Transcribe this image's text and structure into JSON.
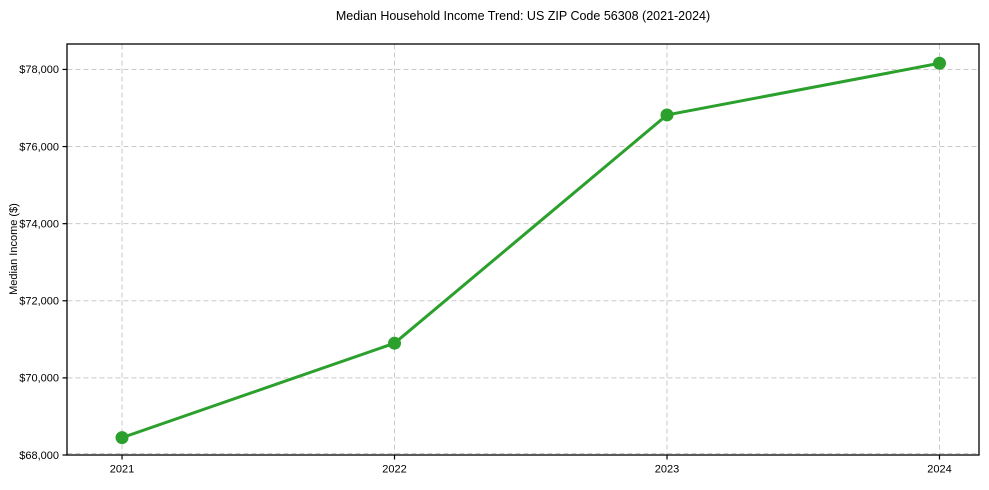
{
  "chart_data": {
    "type": "line",
    "title": "Median Household Income Trend: US ZIP Code 56308 (2021-2024)",
    "xlabel": "",
    "ylabel": "Median Income ($)",
    "x": [
      2021,
      2022,
      2023,
      2024
    ],
    "series": [
      {
        "name": "Median Household Income",
        "values": [
          68450,
          70900,
          76820,
          78160
        ]
      }
    ],
    "xticks": [
      {
        "value": 2021,
        "label": "2021"
      },
      {
        "value": 2022,
        "label": "2022"
      },
      {
        "value": 2023,
        "label": "2023"
      },
      {
        "value": 2024,
        "label": "2024"
      }
    ],
    "yticks": [
      {
        "value": 68000,
        "label": "$68,000"
      },
      {
        "value": 70000,
        "label": "$70,000"
      },
      {
        "value": 72000,
        "label": "$72,000"
      },
      {
        "value": 74000,
        "label": "$74,000"
      },
      {
        "value": 76000,
        "label": "$76,000"
      },
      {
        "value": 78000,
        "label": "$78,000"
      }
    ],
    "xlim": [
      2020.798,
      2024.145
    ],
    "ylim": [
      68000,
      78660
    ],
    "grid": true,
    "grid_style": "dashed",
    "legend_position": "none",
    "colors": {
      "line": "#2ca02c",
      "marker": "#2ca02c",
      "grid": "#c9c9c9",
      "spine": "#000000",
      "text": "#000000",
      "background": "#ffffff"
    }
  }
}
